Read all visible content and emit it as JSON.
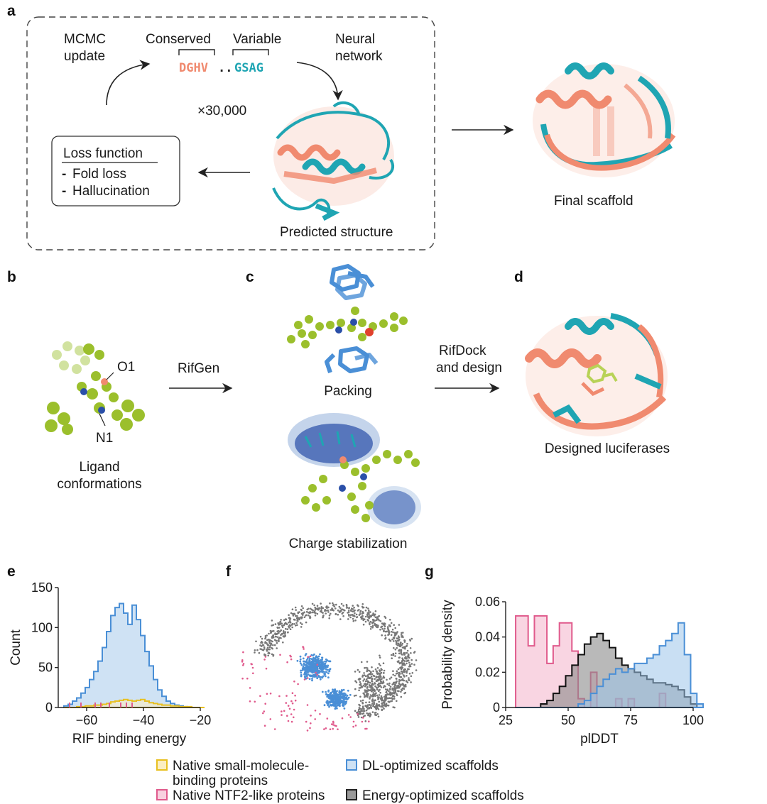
{
  "panels": {
    "a": {
      "label": "a",
      "mcmc_line1": "MCMC",
      "mcmc_line2": "update",
      "conserved": "Conserved",
      "variable": "Variable",
      "seq_conserved": "DGHV",
      "seq_dots": "..",
      "seq_variable": "GSAG",
      "nn_line1": "Neural",
      "nn_line2": "network",
      "iterations": "×30,000",
      "loss_title": "Loss function",
      "loss_item1_mark": "-",
      "loss_item1": "Fold loss",
      "loss_item2_mark": "-",
      "loss_item2": "Hallucination",
      "predicted": "Predicted structure",
      "final": "Final scaffold"
    },
    "b": {
      "label": "b",
      "o1": "O1",
      "n1": "N1",
      "caption_line1": "Ligand",
      "caption_line2": "conformations",
      "arrow": "RifGen"
    },
    "c": {
      "label": "c",
      "packing": "Packing",
      "charge": "Charge stabilization",
      "arrow_line1": "RifDock",
      "arrow_line2": "and design"
    },
    "d": {
      "label": "d",
      "caption": "Designed luciferases"
    },
    "e": {
      "label": "e"
    },
    "f": {
      "label": "f"
    },
    "g": {
      "label": "g"
    }
  },
  "colors": {
    "salmon": "#f08a6f",
    "teal": "#1fa5b3",
    "ligand": "#9bbf2c",
    "blue": "#4a8fd6",
    "darkblue": "#2a4fa8",
    "yellow": "#e8c020",
    "pink": "#e05a8c",
    "gray": "#555555"
  },
  "chart_data": [
    {
      "panel": "e",
      "type": "area",
      "xlabel": "RIF binding energy",
      "ylabel": "Count",
      "xlim": [
        -70,
        -20
      ],
      "ylim": [
        0,
        150
      ],
      "xticks": [
        -60,
        -40,
        -20
      ],
      "yticks": [
        0,
        50,
        100,
        150
      ],
      "bins_start": -68,
      "bin_width": 1.5,
      "series": [
        {
          "name": "DL-optimized scaffolds",
          "values": [
            2,
            4,
            8,
            12,
            18,
            25,
            35,
            45,
            58,
            75,
            95,
            115,
            125,
            130,
            118,
            104,
            128,
            110,
            90,
            70,
            52,
            35,
            22,
            14,
            8,
            5,
            3,
            2,
            1,
            0,
            0,
            0,
            0
          ]
        },
        {
          "name": "Native small-molecule-binding proteins",
          "values": [
            0,
            0,
            0,
            1,
            1,
            2,
            2,
            3,
            3,
            4,
            5,
            7,
            8,
            9,
            10,
            9,
            8,
            9,
            10,
            8,
            6,
            5,
            4,
            3,
            3,
            2,
            2,
            1,
            1,
            1,
            0,
            0,
            0
          ]
        }
      ],
      "rug_native_ntf2": [
        -66,
        -62,
        -57,
        -55,
        -52,
        -48,
        -46,
        -44
      ]
    },
    {
      "panel": "f",
      "type": "scatter",
      "series_names": [
        "Energy-optimized scaffolds",
        "DL-optimized scaffolds",
        "Native NTF2-like proteins"
      ]
    },
    {
      "panel": "g",
      "type": "area",
      "xlabel": "plDDT",
      "ylabel": "Probability density",
      "xlim": [
        25,
        100
      ],
      "ylim": [
        0,
        0.06
      ],
      "xticks": [
        25,
        50,
        75,
        100
      ],
      "yticks": [
        "0",
        "0.02",
        "0.04",
        "0.06"
      ],
      "bins_start": 29,
      "bin_width": 2.5,
      "series": [
        {
          "name": "Native NTF2-like proteins",
          "values": [
            0.052,
            0.052,
            0.035,
            0.052,
            0.052,
            0.025,
            0.035,
            0.048,
            0.048,
            0.032,
            0.005,
            0.0,
            0.02,
            0.0,
            0.0,
            0.0,
            0.005,
            0.0,
            0.005,
            0.0,
            0.0,
            0.0,
            0.0,
            0.008,
            0.0,
            0.0,
            0.0,
            0.0,
            0.0,
            0.0
          ]
        },
        {
          "name": "Energy-optimized scaffolds",
          "values": [
            0.0,
            0.0,
            0.0,
            0.0,
            0.002,
            0.004,
            0.008,
            0.012,
            0.018,
            0.024,
            0.03,
            0.036,
            0.04,
            0.042,
            0.038,
            0.034,
            0.028,
            0.024,
            0.022,
            0.02,
            0.018,
            0.016,
            0.014,
            0.014,
            0.013,
            0.012,
            0.01,
            0.006,
            0.002,
            0.0
          ]
        },
        {
          "name": "DL-optimized scaffolds",
          "values": [
            0.0,
            0.0,
            0.0,
            0.0,
            0.0,
            0.0,
            0.0,
            0.0,
            0.0,
            0.0,
            0.002,
            0.004,
            0.008,
            0.012,
            0.016,
            0.019,
            0.022,
            0.02,
            0.022,
            0.025,
            0.025,
            0.028,
            0.03,
            0.035,
            0.038,
            0.042,
            0.048,
            0.03,
            0.008,
            0.002
          ]
        }
      ]
    }
  ],
  "legend": {
    "item1_line1": "Native small-molecule-",
    "item1_line2": "binding proteins",
    "item2": "DL-optimized scaffolds",
    "item3": "Native NTF2-like proteins",
    "item4": "Energy-optimized scaffolds"
  }
}
